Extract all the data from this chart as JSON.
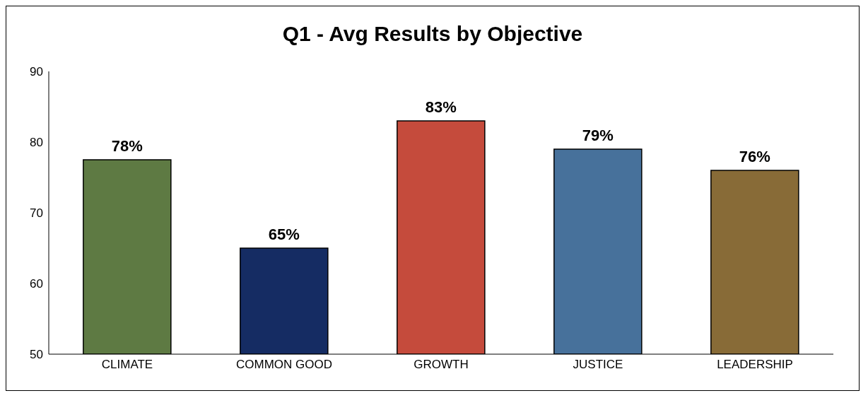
{
  "chart_data": {
    "type": "bar",
    "title": "Q1 - Avg Results by Objective",
    "categories": [
      "CLIMATE",
      "COMMON GOOD",
      "GROWTH",
      "JUSTICE",
      "LEADERSHIP"
    ],
    "values": [
      77.5,
      65,
      83,
      79,
      76
    ],
    "colors": [
      "#5e7a43",
      "#152c63",
      "#c54b3c",
      "#47719b",
      "#886b37"
    ],
    "value_labels": [
      "78%",
      "65%",
      "83%",
      "79%",
      "76%"
    ],
    "ylim": [
      50,
      90
    ],
    "yticks": [
      50,
      60,
      70,
      80,
      90
    ]
  }
}
